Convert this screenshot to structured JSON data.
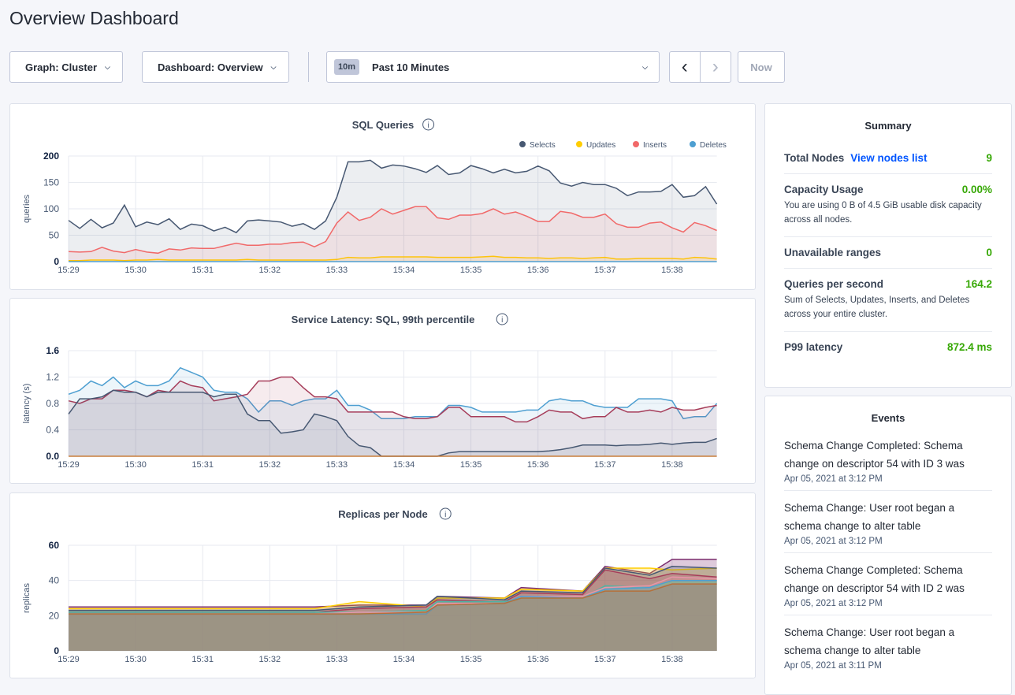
{
  "page": {
    "title": "Overview Dashboard"
  },
  "toolbar": {
    "graph": "Graph: Cluster",
    "dashboard": "Dashboard: Overview",
    "time_badge": "10m",
    "time_range": "Past 10 Minutes",
    "prev": "‹",
    "next": "›",
    "now": "Now"
  },
  "summary": {
    "title": "Summary",
    "rows": [
      {
        "label": "Total Nodes",
        "link": "View nodes list",
        "value": "9"
      },
      {
        "label": "Capacity Usage",
        "value": "0.00%",
        "desc": "You are using 0 B of 4.5 GiB usable disk capacity across all nodes."
      },
      {
        "label": "Unavailable ranges",
        "value": "0"
      },
      {
        "label": "Queries per second",
        "value": "164.2",
        "desc": "Sum of Selects, Updates, Inserts, and Deletes across your entire cluster."
      },
      {
        "label": "P99 latency",
        "value": "872.4 ms"
      }
    ]
  },
  "events": {
    "title": "Events",
    "items": [
      {
        "text": "Schema Change Completed: Schema change on descriptor 54 with ID 3 was",
        "date": "Apr 05, 2021 at 3:12 PM"
      },
      {
        "text": "Schema Change: User root began a schema change to alter table",
        "date": "Apr 05, 2021 at 3:12 PM"
      },
      {
        "text": "Schema Change Completed: Schema change on descriptor 54 with ID 2 was",
        "date": "Apr 05, 2021 at 3:12 PM"
      },
      {
        "text": "Schema Change: User root began a schema change to alter table",
        "date": "Apr 05, 2021 at 3:11 PM"
      }
    ]
  },
  "chart_data": [
    {
      "type": "area",
      "title": "SQL Queries",
      "ylabel": "queries",
      "xlabel": "",
      "ylim": [
        0,
        200
      ],
      "yticks": [
        "0",
        "50",
        "100",
        "150",
        "200"
      ],
      "xticks": [
        "15:29",
        "15:30",
        "15:31",
        "15:32",
        "15:33",
        "15:34",
        "15:35",
        "15:36",
        "15:37",
        "15:38"
      ],
      "grid": true,
      "legend": "top-right",
      "x": [
        "15:29:00",
        "15:29:10",
        "15:29:20",
        "15:29:30",
        "15:29:40",
        "15:29:50",
        "15:30:00",
        "15:30:10",
        "15:30:20",
        "15:30:30",
        "15:30:40",
        "15:30:50",
        "15:31:00",
        "15:31:10",
        "15:31:20",
        "15:31:30",
        "15:31:40",
        "15:31:50",
        "15:32:00",
        "15:32:10",
        "15:32:20",
        "15:32:30",
        "15:32:40",
        "15:32:50",
        "15:33:00",
        "15:33:10",
        "15:33:20",
        "15:33:30",
        "15:33:40",
        "15:33:50",
        "15:34:00",
        "15:34:10",
        "15:34:20",
        "15:34:30",
        "15:34:40",
        "15:34:50",
        "15:35:00",
        "15:35:10",
        "15:35:20",
        "15:35:30",
        "15:35:40",
        "15:35:50",
        "15:36:00",
        "15:36:10",
        "15:36:20",
        "15:36:30",
        "15:36:40",
        "15:36:50",
        "15:37:00",
        "15:37:10",
        "15:37:20",
        "15:37:30",
        "15:37:40",
        "15:37:50",
        "15:38:00",
        "15:38:10",
        "15:38:20",
        "15:38:30",
        "15:38:40"
      ],
      "series": [
        {
          "name": "Selects",
          "color": "#475872",
          "values": [
            78,
            63,
            80,
            64,
            73,
            107,
            66,
            75,
            70,
            81,
            61,
            71,
            68,
            58,
            65,
            55,
            77,
            79,
            77,
            75,
            67,
            72,
            61,
            77,
            122,
            189,
            189,
            192,
            177,
            183,
            181,
            176,
            169,
            182,
            165,
            168,
            182,
            176,
            168,
            175,
            168,
            171,
            181,
            172,
            149,
            143,
            150,
            146,
            146,
            139,
            125,
            132,
            132,
            133,
            146,
            122,
            125,
            142,
            109
          ]
        },
        {
          "name": "Updates",
          "color": "#ffcd02",
          "values": [
            2,
            2,
            3,
            3,
            3,
            2,
            3,
            3,
            4,
            3,
            3,
            3,
            3,
            3,
            3,
            3,
            4,
            3,
            3,
            3,
            3,
            3,
            3,
            3,
            4,
            8,
            7,
            7,
            9,
            9,
            9,
            9,
            9,
            8,
            8,
            8,
            8,
            9,
            10,
            8,
            8,
            7,
            7,
            6,
            7,
            7,
            6,
            7,
            8,
            5,
            5,
            6,
            6,
            6,
            6,
            5,
            8,
            7,
            5
          ]
        },
        {
          "name": "Inserts",
          "color": "#f16969",
          "values": [
            19,
            18,
            19,
            27,
            20,
            17,
            23,
            18,
            16,
            24,
            22,
            26,
            25,
            25,
            30,
            35,
            31,
            31,
            33,
            33,
            36,
            37,
            28,
            38,
            73,
            94,
            78,
            84,
            100,
            90,
            97,
            104,
            104,
            83,
            80,
            88,
            88,
            91,
            100,
            90,
            94,
            86,
            76,
            76,
            95,
            92,
            84,
            84,
            90,
            72,
            65,
            65,
            73,
            75,
            64,
            56,
            74,
            68,
            59
          ]
        },
        {
          "name": "Deletes",
          "color": "#4e9fd1",
          "values": [
            0,
            0,
            0,
            0,
            0,
            0,
            0,
            0,
            0,
            0,
            0,
            0,
            0,
            0,
            0,
            0,
            0,
            0,
            0,
            0,
            0,
            0,
            0,
            0,
            0,
            0,
            0,
            0,
            0,
            0,
            0,
            0,
            0,
            0,
            0,
            0,
            0,
            0,
            0,
            0,
            0,
            0,
            0,
            0,
            0,
            0,
            0,
            0,
            0,
            0,
            0,
            0,
            0,
            0,
            0,
            0,
            0,
            0,
            0
          ]
        }
      ]
    },
    {
      "type": "area",
      "title": "Service Latency: SQL, 99th percentile",
      "ylabel": "latency (s)",
      "xlabel": "",
      "ylim": [
        0,
        1.6
      ],
      "yticks": [
        "0.0",
        "0.4",
        "0.8",
        "1.2",
        "1.6"
      ],
      "xticks": [
        "15:29",
        "15:30",
        "15:31",
        "15:32",
        "15:33",
        "15:34",
        "15:35",
        "15:36",
        "15:37",
        "15:38"
      ],
      "grid": true,
      "legend": "none",
      "x_same_as_first": true,
      "series": [
        {
          "color": "#4e9fd1",
          "values": [
            0.94,
            1.0,
            1.14,
            1.07,
            1.2,
            1.04,
            1.14,
            1.07,
            1.07,
            1.14,
            1.34,
            1.27,
            1.2,
            1.0,
            0.97,
            0.97,
            0.87,
            0.67,
            0.84,
            0.84,
            0.77,
            0.84,
            0.87,
            0.87,
            1.0,
            0.77,
            0.77,
            0.7,
            0.57,
            0.57,
            0.57,
            0.6,
            0.6,
            0.6,
            0.77,
            0.77,
            0.74,
            0.67,
            0.67,
            0.67,
            0.67,
            0.7,
            0.7,
            0.84,
            0.87,
            0.84,
            0.84,
            0.77,
            0.74,
            0.74,
            0.74,
            0.87,
            0.87,
            0.87,
            0.84,
            0.57,
            0.6,
            0.6,
            0.8
          ]
        },
        {
          "color": "#a63d5a",
          "values": [
            0.84,
            0.8,
            0.87,
            0.87,
            1.0,
            1.0,
            0.97,
            0.9,
            1.0,
            0.97,
            1.14,
            1.07,
            1.04,
            0.84,
            0.87,
            0.9,
            0.94,
            1.14,
            1.14,
            1.2,
            1.2,
            1.04,
            0.9,
            0.9,
            0.87,
            0.67,
            0.67,
            0.67,
            0.67,
            0.67,
            0.6,
            0.57,
            0.57,
            0.6,
            0.74,
            0.74,
            0.6,
            0.6,
            0.6,
            0.6,
            0.52,
            0.52,
            0.6,
            0.7,
            0.67,
            0.67,
            0.57,
            0.6,
            0.6,
            0.74,
            0.67,
            0.67,
            0.7,
            0.67,
            0.74,
            0.7,
            0.7,
            0.74,
            0.77
          ]
        },
        {
          "color": "#475872",
          "values": [
            0.64,
            0.87,
            0.87,
            0.9,
            1.0,
            0.97,
            0.97,
            0.9,
            0.97,
            0.97,
            0.97,
            0.97,
            0.97,
            0.9,
            0.94,
            0.94,
            0.64,
            0.54,
            0.54,
            0.35,
            0.37,
            0.4,
            0.64,
            0.6,
            0.54,
            0.3,
            0.16,
            0.13,
            0.0,
            0.0,
            0.0,
            0.0,
            0.0,
            0.0,
            0.05,
            0.07,
            0.07,
            0.07,
            0.07,
            0.07,
            0.07,
            0.07,
            0.07,
            0.08,
            0.1,
            0.13,
            0.17,
            0.17,
            0.17,
            0.16,
            0.17,
            0.17,
            0.18,
            0.2,
            0.18,
            0.2,
            0.21,
            0.21,
            0.27
          ]
        },
        {
          "color": "#c97e3c",
          "values": [
            0,
            0,
            0,
            0,
            0,
            0,
            0,
            0,
            0,
            0,
            0,
            0,
            0,
            0,
            0,
            0,
            0,
            0,
            0,
            0,
            0,
            0,
            0,
            0,
            0,
            0,
            0,
            0,
            0,
            0,
            0,
            0,
            0,
            0,
            0,
            0,
            0,
            0,
            0,
            0,
            0,
            0,
            0,
            0,
            0,
            0,
            0,
            0,
            0,
            0,
            0,
            0,
            0,
            0,
            0,
            0,
            0,
            0,
            0
          ]
        }
      ]
    },
    {
      "type": "area",
      "title": "Replicas per Node",
      "ylabel": "replicas",
      "xlabel": "",
      "ylim": [
        0,
        60
      ],
      "yticks": [
        "0",
        "20",
        "40",
        "60"
      ],
      "xticks": [
        "15:29",
        "15:30",
        "15:31",
        "15:32",
        "15:33",
        "15:34",
        "15:35",
        "15:36",
        "15:37",
        "15:38"
      ],
      "grid": true,
      "legend": "none",
      "x": [
        "15:29:00",
        "15:32:40",
        "15:33:20",
        "15:34:20",
        "15:34:30",
        "15:35:30",
        "15:35:45",
        "15:36:40",
        "15:37:00",
        "15:37:40",
        "15:38:00",
        "15:38:40"
      ],
      "series": [
        {
          "color": "#7b2d6e",
          "values": [
            25,
            25,
            26,
            26,
            31,
            30,
            36,
            34,
            48,
            44,
            52,
            52
          ]
        },
        {
          "color": "#ffcd02",
          "values": [
            24,
            24,
            28,
            25,
            30,
            30,
            35,
            34,
            47,
            47,
            46,
            47
          ]
        },
        {
          "color": "#475872",
          "values": [
            23,
            23,
            25,
            26,
            31,
            29,
            34,
            33,
            47,
            43,
            48,
            47
          ]
        },
        {
          "color": "#a63d5a",
          "values": [
            22,
            22,
            24,
            25,
            29,
            28,
            33,
            32,
            46,
            41,
            44,
            42
          ]
        },
        {
          "color": "#4cb5a4",
          "values": [
            22,
            22,
            22,
            23,
            28,
            28,
            30,
            30,
            37,
            36,
            40,
            40
          ]
        },
        {
          "color": "#8cc665",
          "values": [
            21,
            21,
            21,
            22,
            27,
            27,
            30,
            30,
            35,
            36,
            39,
            39
          ]
        },
        {
          "color": "#e995a9",
          "values": [
            21,
            21,
            22,
            22,
            27,
            27,
            31,
            31,
            36,
            37,
            42,
            41
          ]
        },
        {
          "color": "#4e9fd1",
          "values": [
            21,
            21,
            21,
            21,
            26,
            27,
            31,
            30,
            35,
            36,
            40,
            40
          ]
        },
        {
          "color": "#b5703a",
          "values": [
            21,
            21,
            21,
            22,
            26,
            27,
            30,
            30,
            34,
            34,
            38,
            38
          ]
        }
      ]
    }
  ]
}
